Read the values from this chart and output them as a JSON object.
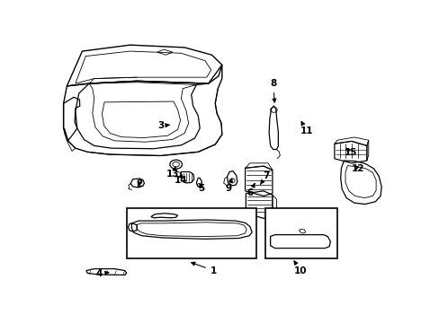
{
  "background_color": "#ffffff",
  "line_color": "#000000",
  "figsize": [
    4.89,
    3.6
  ],
  "dpi": 100,
  "label_arrows": {
    "1": {
      "lpos": [
        0.465,
        0.068
      ],
      "tpos": [
        0.39,
        0.105
      ]
    },
    "2": {
      "lpos": [
        0.248,
        0.415
      ],
      "tpos": [
        0.238,
        0.44
      ]
    },
    "3": {
      "lpos": [
        0.31,
        0.65
      ],
      "tpos": [
        0.345,
        0.655
      ]
    },
    "4": {
      "lpos": [
        0.13,
        0.055
      ],
      "tpos": [
        0.168,
        0.062
      ]
    },
    "5": {
      "lpos": [
        0.43,
        0.4
      ],
      "tpos": [
        0.42,
        0.428
      ]
    },
    "6": {
      "lpos": [
        0.572,
        0.38
      ],
      "tpos": [
        0.59,
        0.43
      ]
    },
    "7": {
      "lpos": [
        0.62,
        0.45
      ],
      "tpos": [
        0.598,
        0.405
      ]
    },
    "8": {
      "lpos": [
        0.64,
        0.82
      ],
      "tpos": [
        0.645,
        0.73
      ]
    },
    "9": {
      "lpos": [
        0.51,
        0.4
      ],
      "tpos": [
        0.52,
        0.44
      ]
    },
    "10": {
      "lpos": [
        0.72,
        0.068
      ],
      "tpos": [
        0.7,
        0.11
      ]
    },
    "11": {
      "lpos": [
        0.738,
        0.628
      ],
      "tpos": [
        0.718,
        0.68
      ]
    },
    "12": {
      "lpos": [
        0.888,
        0.478
      ],
      "tpos": [
        0.872,
        0.5
      ]
    },
    "13": {
      "lpos": [
        0.345,
        0.455
      ],
      "tpos": [
        0.355,
        0.488
      ]
    },
    "14": {
      "lpos": [
        0.37,
        0.43
      ],
      "tpos": [
        0.37,
        0.462
      ]
    },
    "15": {
      "lpos": [
        0.868,
        0.542
      ],
      "tpos": [
        0.848,
        0.57
      ]
    }
  }
}
